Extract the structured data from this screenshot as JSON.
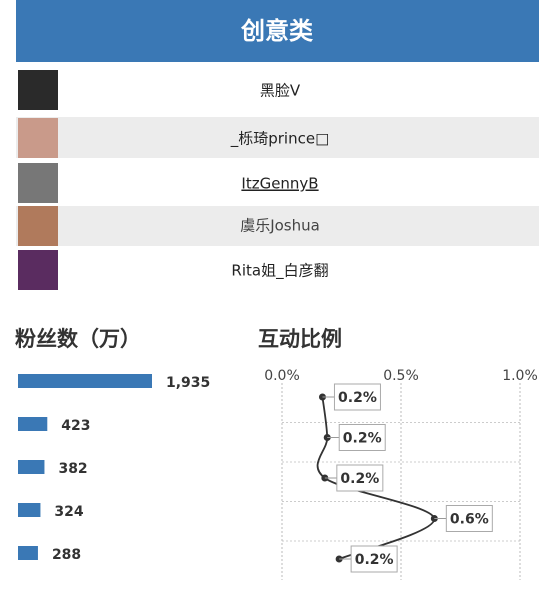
{
  "header": {
    "title": "创意类"
  },
  "table": {
    "rows": [
      "黑脸V",
      "_栎琦prince□",
      "ItzGennyB",
      "虞乐Joshua",
      "Rita姐_白彦翻"
    ]
  },
  "chart_data": [
    {
      "type": "hbar",
      "title": "粉丝数（万）",
      "color": "#3a78b5",
      "values": [
        1935,
        423,
        382,
        324,
        288
      ],
      "value_labels": [
        "1,935",
        "423",
        "382",
        "324",
        "288"
      ]
    },
    {
      "type": "hline",
      "title": "互动比例",
      "color": "#333333",
      "values": [
        0.17,
        0.19,
        0.18,
        0.64,
        0.24
      ],
      "value_labels": [
        "0.2%",
        "0.2%",
        "0.2%",
        "0.6%",
        "0.2%"
      ],
      "xlim": [
        0,
        1.0
      ],
      "xticks": [
        {
          "value": 0,
          "label": "0.0%"
        },
        {
          "value": 0.5,
          "label": "0.5%"
        },
        {
          "value": 1.0,
          "label": "1.0%"
        }
      ],
      "grid": true
    }
  ]
}
